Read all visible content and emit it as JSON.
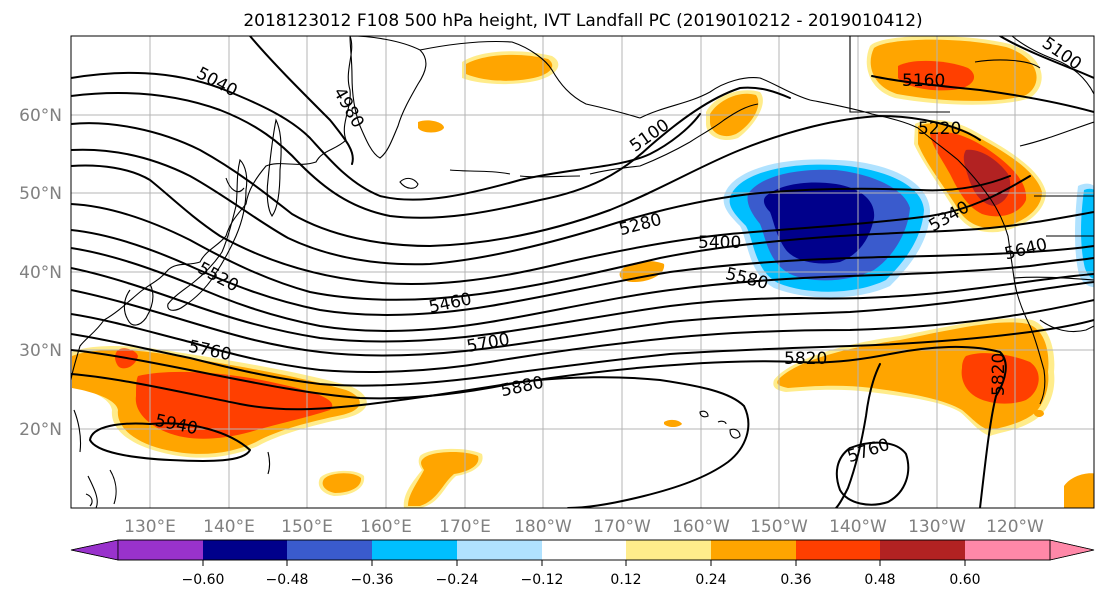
{
  "title": "2018123012 F108 500 hPa height, IVT Landfall PC (2019010212 - 2019010412)",
  "lat_ticks": [
    "60°N",
    "50°N",
    "40°N",
    "30°N",
    "20°N"
  ],
  "lon_ticks": [
    "130°E",
    "140°E",
    "150°E",
    "160°E",
    "170°E",
    "180°W",
    "170°W",
    "160°W",
    "150°W",
    "140°W",
    "130°W",
    "120°W"
  ],
  "contour_labels": [
    "5040",
    "4980",
    "5100",
    "5160",
    "5220",
    "5280",
    "5340",
    "5400",
    "5460",
    "5520",
    "5580",
    "5640",
    "5700",
    "5760",
    "5820",
    "5880",
    "5940",
    "5760",
    "5820",
    "5100"
  ],
  "colorbar": {
    "colors": [
      "#9932cc",
      "#00008b",
      "#3a5bcd",
      "#00bfff",
      "#b0e2ff",
      "#ffffff",
      "#ffec8b",
      "#ffa500",
      "#ff3f00",
      "#b22222",
      "#ff88a8"
    ],
    "ticks": [
      "−0.60",
      "−0.48",
      "−0.36",
      "−0.24",
      "−0.12",
      "0.12",
      "0.24",
      "0.36",
      "0.48",
      "0.60"
    ]
  },
  "map_colors": {
    "orange": "#ffa500",
    "red_orange": "#ff3f00",
    "dark_red": "#b22222",
    "light_yellow": "#ffec8b",
    "dark_blue": "#00008b",
    "royal_blue": "#3a5bcd",
    "sky_blue": "#00bfff",
    "pale_blue": "#b0e2ff"
  }
}
